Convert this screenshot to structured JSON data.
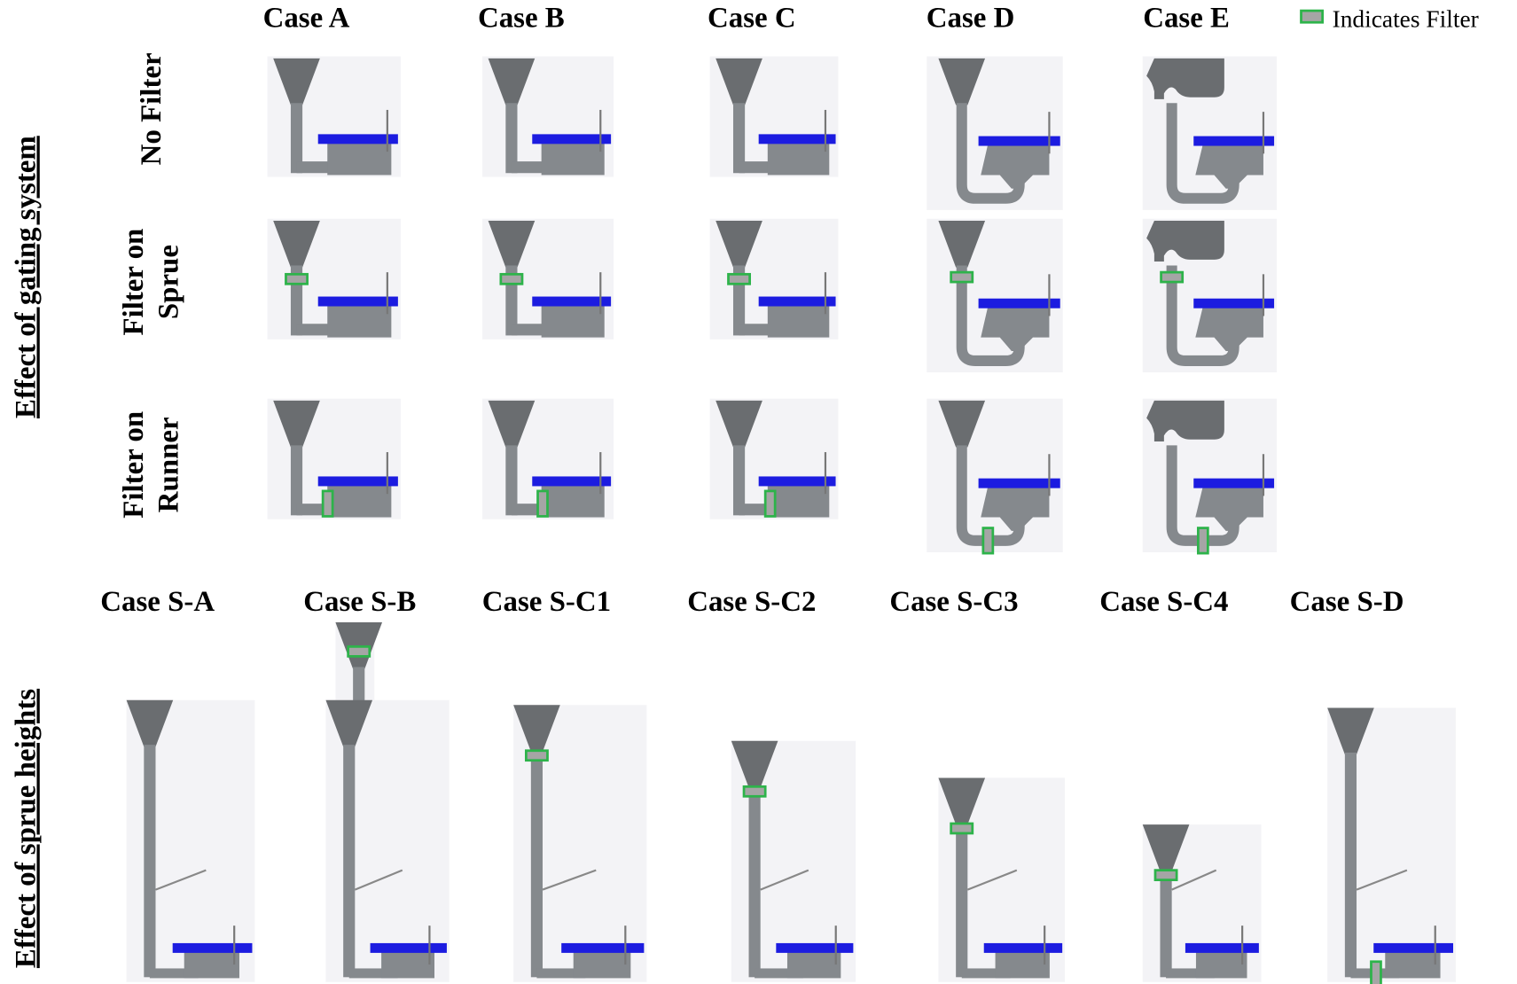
{
  "legend": {
    "label": "Indicates Filter"
  },
  "gating_section": {
    "title": "Effect of gating system",
    "columns": [
      "Case A",
      "Case B",
      "Case C",
      "Case D",
      "Case E"
    ],
    "rows": [
      [
        "No Filter"
      ],
      [
        "Filter on",
        "Sprue"
      ],
      [
        "Filter on",
        "Runner"
      ]
    ]
  },
  "sprue_section": {
    "title": "Effect of sprue heights",
    "columns": [
      "Case S-A",
      "Case S-B",
      "Case S-C1",
      "Case S-C2",
      "Case S-C3",
      "Case S-C4",
      "Case S-D"
    ]
  }
}
